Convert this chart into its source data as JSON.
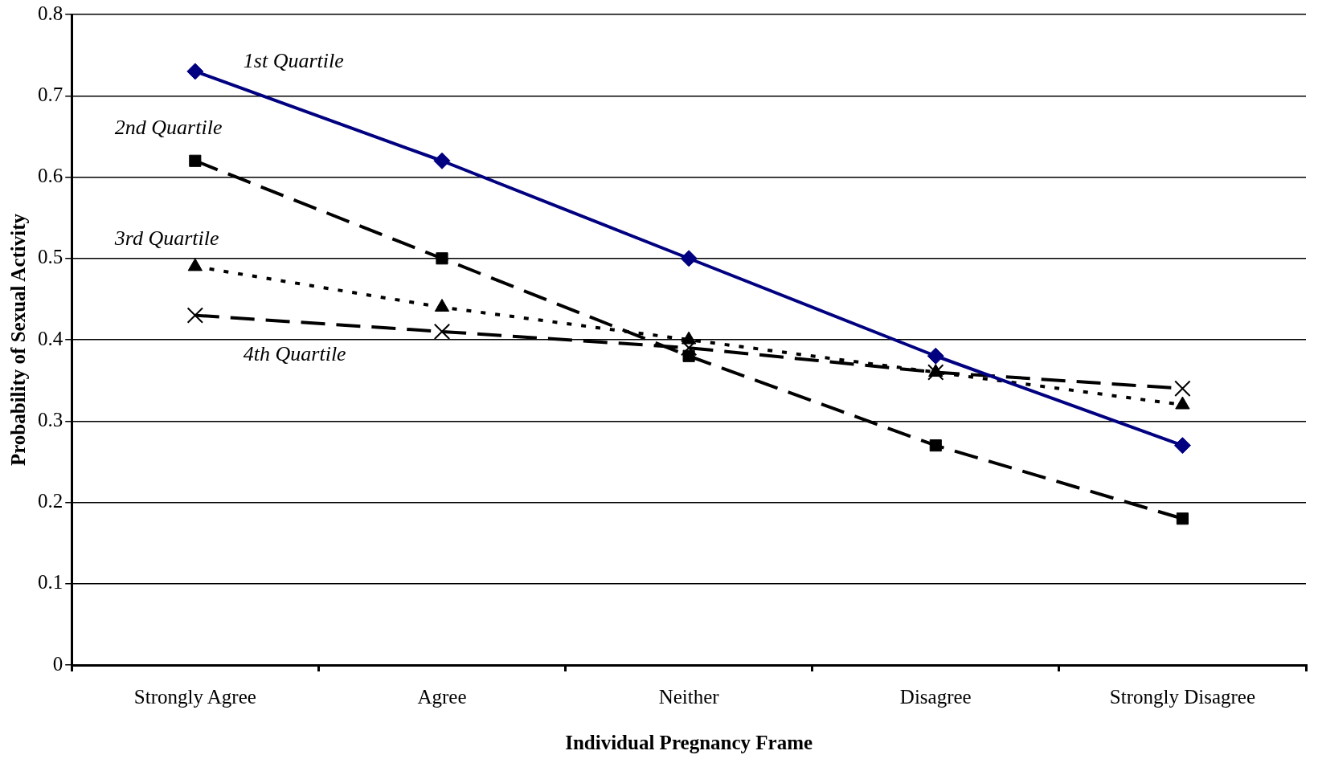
{
  "chart_data": {
    "type": "line",
    "xlabel": "Individual Pregnancy Frame",
    "ylabel": "Probability of Sexual Activity",
    "categories": [
      "Strongly Agree",
      "Agree",
      "Neither",
      "Disagree",
      "Strongly Disagree"
    ],
    "series": [
      {
        "name": "1st Quartile",
        "color": "#000080",
        "values": [
          0.73,
          0.62,
          0.5,
          0.38,
          0.27
        ],
        "marker": "diamond",
        "line_style": "solid"
      },
      {
        "name": "2nd Quartile",
        "color": "#000000",
        "values": [
          0.62,
          0.5,
          0.38,
          0.27,
          0.18
        ],
        "marker": "square",
        "line_style": "dashed"
      },
      {
        "name": "3rd Quartile",
        "color": "#000000",
        "values": [
          0.49,
          0.44,
          0.4,
          0.36,
          0.32
        ],
        "marker": "triangle",
        "line_style": "dotted"
      },
      {
        "name": "4th Quartile",
        "color": "#000000",
        "values": [
          0.43,
          0.41,
          0.39,
          0.36,
          0.34
        ],
        "marker": "cross",
        "line_style": "dashed"
      }
    ],
    "ylim": [
      0,
      0.8
    ],
    "yticks": [
      0,
      0.1,
      0.2,
      0.3,
      0.4,
      0.5,
      0.6,
      0.7,
      0.8
    ],
    "grid": "y",
    "legend": false
  }
}
